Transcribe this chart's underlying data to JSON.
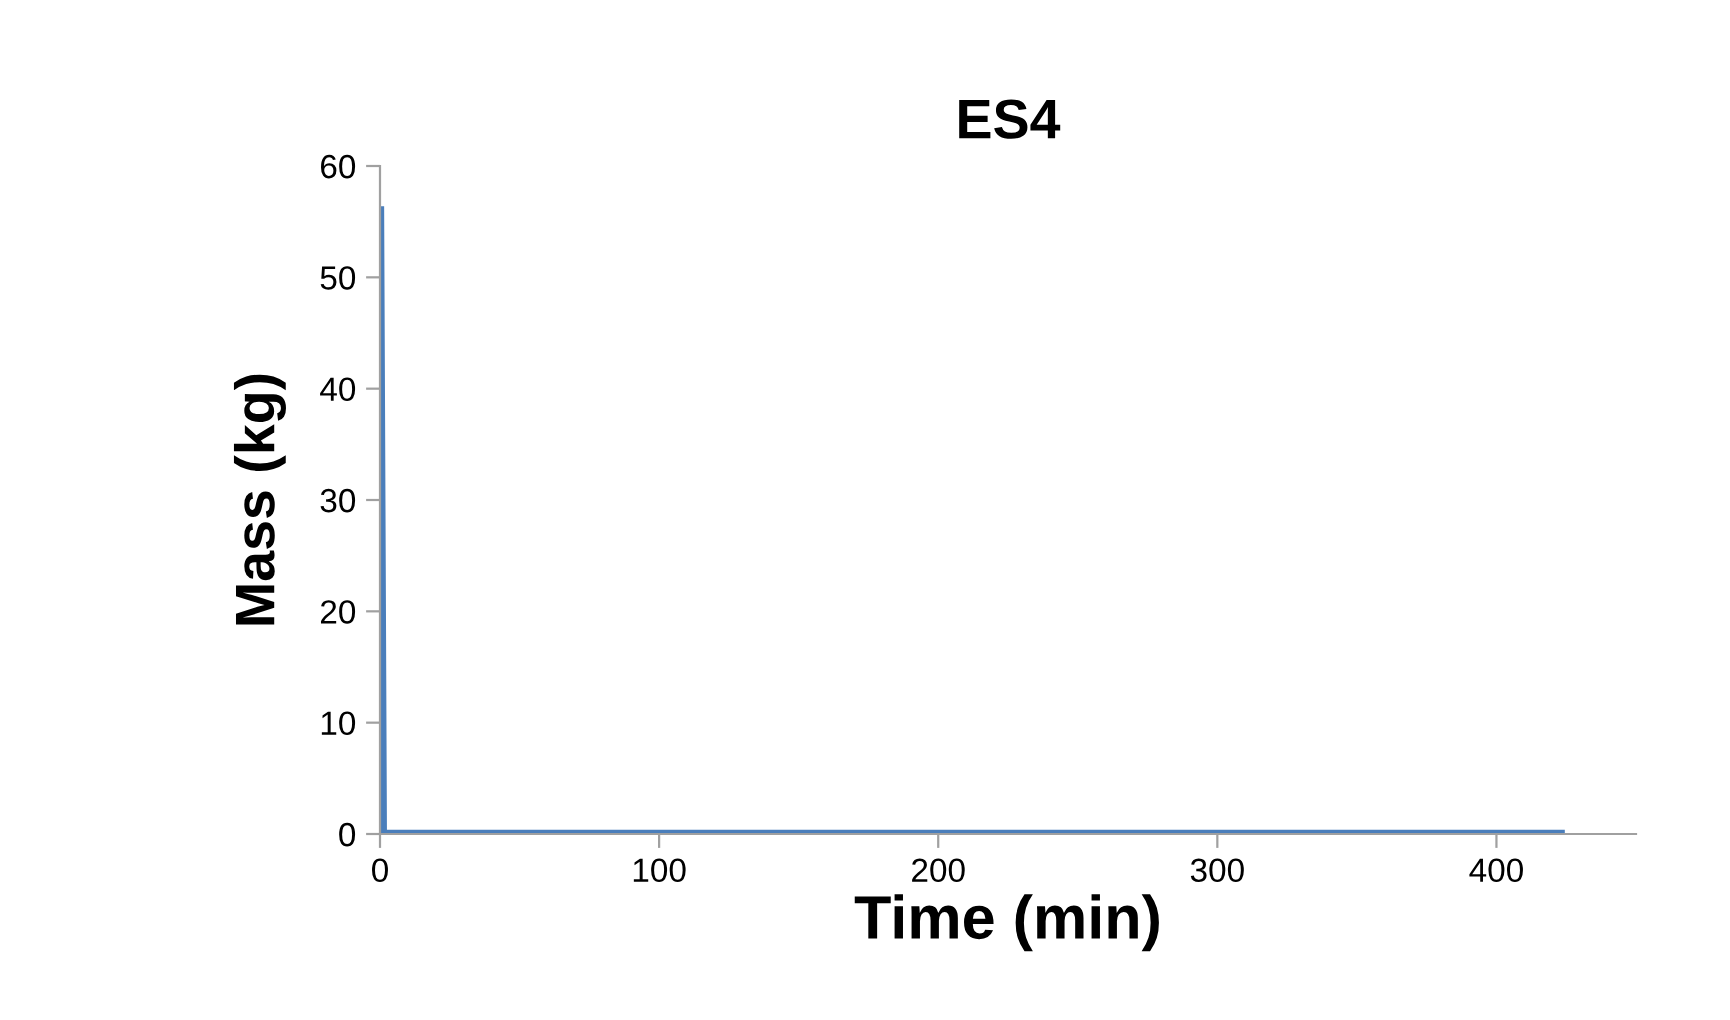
{
  "chart_data": {
    "type": "line",
    "title": "ES4",
    "xlabel": "Time (min)",
    "ylabel": "Mass (kg)",
    "series": [
      {
        "color": "#4a7ebb",
        "x": [
          0,
          1,
          423
        ],
        "values": [
          56,
          0,
          0
        ]
      }
    ],
    "xlim": [
      0,
      450
    ],
    "ylim": [
      0,
      60
    ],
    "xticks": [
      0,
      100,
      200,
      300,
      400
    ],
    "yticks": [
      0,
      10,
      20,
      30,
      40,
      50,
      60
    ],
    "grid": false,
    "legend": false,
    "marker": "none",
    "line_style": "solid"
  }
}
